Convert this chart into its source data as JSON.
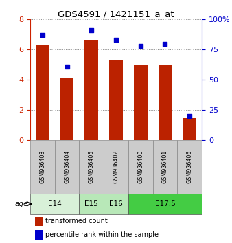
{
  "title": "GDS4591 / 1421151_a_at",
  "samples": [
    "GSM936403",
    "GSM936404",
    "GSM936405",
    "GSM936402",
    "GSM936400",
    "GSM936401",
    "GSM936406"
  ],
  "transformed_counts": [
    6.3,
    4.15,
    6.6,
    5.3,
    5.0,
    5.0,
    1.45
  ],
  "percentile_ranks": [
    87,
    61,
    91,
    83,
    78,
    80,
    20
  ],
  "bar_color": "#bb2200",
  "dot_color": "#0000cc",
  "ylim_left": [
    0,
    8
  ],
  "ylim_right": [
    0,
    100
  ],
  "yticks_left": [
    0,
    2,
    4,
    6,
    8
  ],
  "yticks_right": [
    0,
    25,
    50,
    75,
    100
  ],
  "yticklabels_right": [
    "0",
    "25",
    "50",
    "75",
    "100%"
  ],
  "age_groups": [
    {
      "label": "E14",
      "span": [
        0,
        1
      ],
      "color": "#d8f0d8"
    },
    {
      "label": "E15",
      "span": [
        2,
        2
      ],
      "color": "#b8e8b8"
    },
    {
      "label": "E16",
      "span": [
        3,
        3
      ],
      "color": "#b8e8b8"
    },
    {
      "label": "E17.5",
      "span": [
        4,
        6
      ],
      "color": "#44cc44"
    }
  ],
  "legend_red_label": "transformed count",
  "legend_blue_label": "percentile rank within the sample",
  "background_color": "#ffffff",
  "plot_bg": "#ffffff",
  "grid_color": "#888888",
  "tick_color_left": "#cc2200",
  "tick_color_right": "#0000cc",
  "sample_bg_color": "#cccccc",
  "sample_border_color": "#888888"
}
